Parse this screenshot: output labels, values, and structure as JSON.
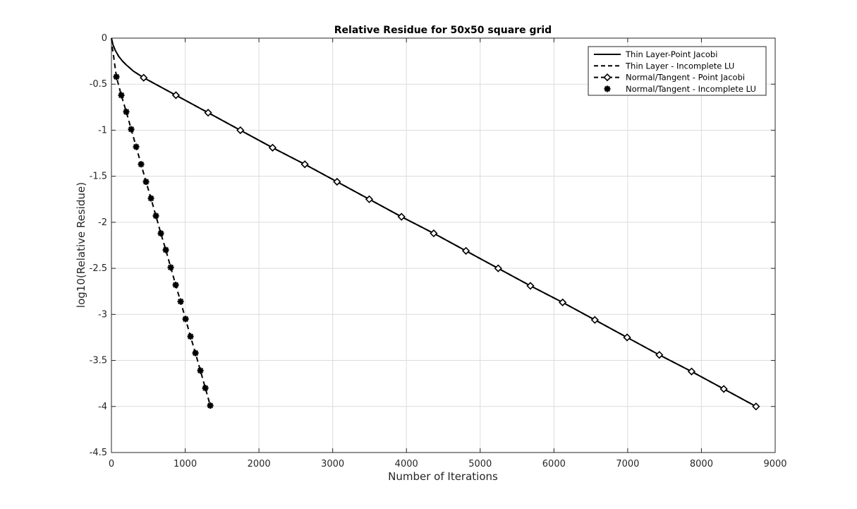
{
  "chart_data": {
    "type": "line",
    "title": "Relative Residue for 50x50 square grid",
    "xlabel": "Number of Iterations",
    "ylabel": "log10(Relative Residue)",
    "xlim": [
      0,
      9000
    ],
    "ylim": [
      -4.5,
      0
    ],
    "xticks": [
      0,
      1000,
      2000,
      3000,
      4000,
      5000,
      6000,
      7000,
      8000,
      9000
    ],
    "yticks": [
      0,
      -0.5,
      -1,
      -1.5,
      -2,
      -2.5,
      -3,
      -3.5,
      -4,
      -4.5
    ],
    "xtick_labels": [
      "0",
      "1000",
      "2000",
      "3000",
      "4000",
      "5000",
      "6000",
      "7000",
      "8000",
      "9000"
    ],
    "ytick_labels": [
      "0",
      "-0.5",
      "-1",
      "-1.5",
      "-2",
      "-2.5",
      "-3",
      "-3.5",
      "-4",
      "-4.5"
    ],
    "grid": true,
    "legend_position": "top-right",
    "series": [
      {
        "name": "Thin Layer-Point Jacobi",
        "line": "solid",
        "marker": "none",
        "color": "#000000",
        "x": [
          0,
          20,
          50,
          100,
          150,
          200,
          300,
          437,
          874,
          1311,
          1748,
          2185,
          2622,
          3059,
          3496,
          3933,
          4370,
          4807,
          5244,
          5681,
          6118,
          6555,
          6992,
          7429,
          7866,
          8303,
          8740
        ],
        "y": [
          0,
          -0.07,
          -0.13,
          -0.2,
          -0.25,
          -0.29,
          -0.36,
          -0.43,
          -0.62,
          -0.81,
          -1.0,
          -1.19,
          -1.37,
          -1.56,
          -1.75,
          -1.94,
          -2.12,
          -2.31,
          -2.5,
          -2.69,
          -2.87,
          -3.06,
          -3.25,
          -3.44,
          -3.62,
          -3.81,
          -4.0
        ]
      },
      {
        "name": "Thin Layer - Incomplete LU",
        "line": "dashed",
        "marker": "none",
        "color": "#000000",
        "x": [
          0,
          10,
          30,
          67,
          134,
          201,
          268,
          335,
          402,
          469,
          536,
          603,
          670,
          737,
          804,
          871,
          938,
          1005,
          1072,
          1139,
          1206,
          1273,
          1340
        ],
        "y": [
          0,
          -0.1,
          -0.2,
          -0.42,
          -0.62,
          -0.8,
          -0.99,
          -1.18,
          -1.37,
          -1.56,
          -1.74,
          -1.93,
          -2.12,
          -2.3,
          -2.49,
          -2.68,
          -2.86,
          -3.05,
          -3.24,
          -3.42,
          -3.61,
          -3.8,
          -3.99
        ]
      },
      {
        "name": "Normal/Tangent - Point Jacobi",
        "line": "dashed",
        "marker": "diamond",
        "color": "#000000",
        "x": [
          0,
          20,
          50,
          100,
          150,
          200,
          300,
          437,
          874,
          1311,
          1748,
          2185,
          2622,
          3059,
          3496,
          3933,
          4370,
          4807,
          5244,
          5681,
          6118,
          6555,
          6992,
          7429,
          7866,
          8303,
          8740
        ],
        "y": [
          0,
          -0.07,
          -0.13,
          -0.2,
          -0.25,
          -0.29,
          -0.36,
          -0.43,
          -0.62,
          -0.81,
          -1.0,
          -1.19,
          -1.37,
          -1.56,
          -1.75,
          -1.94,
          -2.12,
          -2.31,
          -2.5,
          -2.69,
          -2.87,
          -3.06,
          -3.25,
          -3.44,
          -3.62,
          -3.81,
          -4.0
        ],
        "marker_x": [
          437,
          874,
          1311,
          1748,
          2185,
          2622,
          3059,
          3496,
          3933,
          4370,
          4807,
          5244,
          5681,
          6118,
          6555,
          6992,
          7429,
          7866,
          8303,
          8740
        ],
        "marker_y": [
          -0.43,
          -0.62,
          -0.81,
          -1.0,
          -1.19,
          -1.37,
          -1.56,
          -1.75,
          -1.94,
          -2.12,
          -2.31,
          -2.5,
          -2.69,
          -2.87,
          -3.06,
          -3.25,
          -3.44,
          -3.62,
          -3.81,
          -4.0
        ]
      },
      {
        "name": "Normal/Tangent - Incomplete LU",
        "line": "none",
        "marker": "asterisk",
        "color": "#000000",
        "x": [
          67,
          134,
          201,
          268,
          335,
          402,
          469,
          536,
          603,
          670,
          737,
          804,
          871,
          938,
          1005,
          1072,
          1139,
          1206,
          1273,
          1340
        ],
        "y": [
          -0.42,
          -0.62,
          -0.8,
          -0.99,
          -1.18,
          -1.37,
          -1.56,
          -1.74,
          -1.93,
          -2.12,
          -2.3,
          -2.49,
          -2.68,
          -2.86,
          -3.05,
          -3.24,
          -3.42,
          -3.61,
          -3.8,
          -3.99
        ]
      }
    ]
  }
}
